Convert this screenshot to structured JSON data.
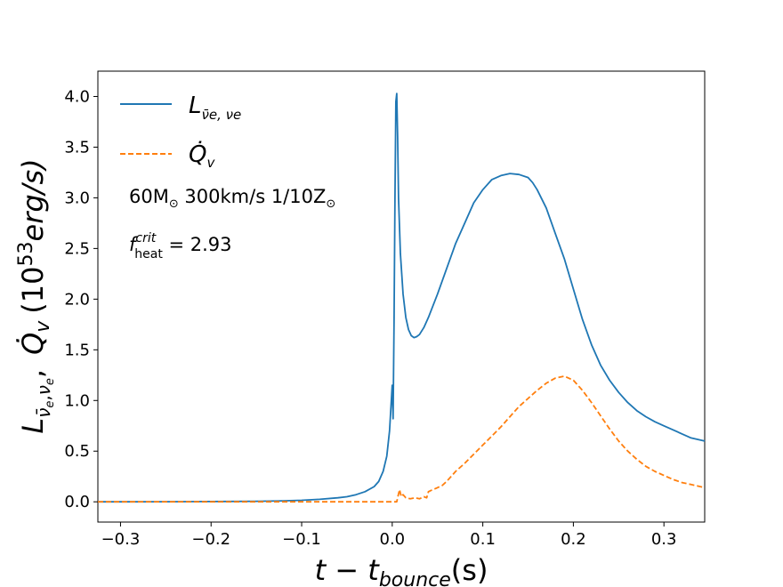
{
  "chart_data": {
    "type": "line",
    "xlabel": "t − t_bounce(s)",
    "xlabel_parts": {
      "main": "t − t",
      "sub": "bounce",
      "tail": "(s)"
    },
    "ylabel_parts": {
      "L": "L",
      "nubar": "ν̄",
      "e1": "e",
      "comma1": ",",
      "nu": "ν",
      "e2": "e",
      "comma2": ",",
      "Qdot": "Q̇",
      "v": "v",
      "units": "(10",
      "exp": "53",
      "units_tail": "erg/s)"
    },
    "xlim": [
      -0.325,
      0.345
    ],
    "ylim": [
      -0.2,
      4.25
    ],
    "xticks": [
      -0.3,
      -0.2,
      -0.1,
      0.0,
      0.1,
      0.2,
      0.3
    ],
    "xtick_labels": [
      "−0.3",
      "−0.2",
      "−0.1",
      "0.0",
      "0.1",
      "0.2",
      "0.3"
    ],
    "yticks": [
      0.0,
      0.5,
      1.0,
      1.5,
      2.0,
      2.5,
      3.0,
      3.5,
      4.0
    ],
    "ytick_labels": [
      "0.0",
      "0.5",
      "1.0",
      "1.5",
      "2.0",
      "2.5",
      "3.0",
      "3.5",
      "4.0"
    ],
    "legend": [
      {
        "name": "L",
        "sub": "ν̄e, νe",
        "color": "#1f77b4",
        "style": "solid"
      },
      {
        "name": "Q̇",
        "sub": "v",
        "color": "#ff7f0e",
        "style": "dashed"
      }
    ],
    "annotations": {
      "model": {
        "mass": "60M",
        "sun": "⊙",
        "rest": " 300km/s 1/10Z",
        "sun2": "⊙"
      },
      "fheat": {
        "f": "f",
        "sup": "crit",
        "sub": "heat",
        "value": " = 2.93"
      }
    },
    "series": [
      {
        "name": "L_nue",
        "color": "#1f77b4",
        "x": [
          -0.325,
          -0.3,
          -0.25,
          -0.2,
          -0.15,
          -0.12,
          -0.1,
          -0.08,
          -0.06,
          -0.05,
          -0.04,
          -0.03,
          -0.02,
          -0.015,
          -0.01,
          -0.006,
          -0.003,
          -0.001,
          0.0,
          0.001,
          0.002,
          0.003,
          0.004,
          0.005,
          0.006,
          0.007,
          0.009,
          0.012,
          0.015,
          0.018,
          0.021,
          0.024,
          0.027,
          0.03,
          0.035,
          0.04,
          0.05,
          0.06,
          0.07,
          0.08,
          0.09,
          0.1,
          0.11,
          0.12,
          0.13,
          0.14,
          0.15,
          0.155,
          0.16,
          0.17,
          0.18,
          0.19,
          0.2,
          0.21,
          0.22,
          0.23,
          0.24,
          0.25,
          0.26,
          0.27,
          0.28,
          0.29,
          0.3,
          0.31,
          0.32,
          0.33,
          0.345
        ],
        "y": [
          0.0,
          0.0,
          0.001,
          0.003,
          0.005,
          0.01,
          0.015,
          0.025,
          0.04,
          0.05,
          0.07,
          0.1,
          0.15,
          0.2,
          0.3,
          0.45,
          0.7,
          1.0,
          1.15,
          0.82,
          1.8,
          3.0,
          3.95,
          4.03,
          3.6,
          3.0,
          2.45,
          2.05,
          1.82,
          1.7,
          1.64,
          1.62,
          1.63,
          1.65,
          1.72,
          1.82,
          2.05,
          2.3,
          2.55,
          2.75,
          2.95,
          3.08,
          3.18,
          3.22,
          3.24,
          3.23,
          3.2,
          3.15,
          3.08,
          2.9,
          2.65,
          2.4,
          2.1,
          1.8,
          1.55,
          1.35,
          1.2,
          1.08,
          0.98,
          0.9,
          0.84,
          0.79,
          0.75,
          0.71,
          0.67,
          0.63,
          0.6
        ]
      },
      {
        "name": "Q_v",
        "color": "#ff7f0e",
        "x": [
          -0.325,
          -0.2,
          -0.1,
          -0.05,
          0.0,
          0.005,
          0.008,
          0.01,
          0.012,
          0.015,
          0.02,
          0.025,
          0.03,
          0.035,
          0.038,
          0.04,
          0.045,
          0.05,
          0.055,
          0.06,
          0.065,
          0.07,
          0.08,
          0.09,
          0.1,
          0.11,
          0.12,
          0.13,
          0.14,
          0.15,
          0.16,
          0.17,
          0.18,
          0.19,
          0.2,
          0.21,
          0.22,
          0.23,
          0.24,
          0.25,
          0.26,
          0.27,
          0.28,
          0.29,
          0.3,
          0.31,
          0.32,
          0.33,
          0.345
        ],
        "y": [
          0.0,
          0.0,
          0.0,
          0.0,
          0.0,
          0.0,
          0.12,
          0.05,
          0.07,
          0.04,
          0.03,
          0.04,
          0.03,
          0.05,
          0.04,
          0.1,
          0.12,
          0.14,
          0.16,
          0.2,
          0.25,
          0.3,
          0.38,
          0.47,
          0.56,
          0.65,
          0.74,
          0.84,
          0.94,
          1.02,
          1.1,
          1.17,
          1.22,
          1.24,
          1.2,
          1.1,
          0.98,
          0.85,
          0.72,
          0.6,
          0.5,
          0.42,
          0.35,
          0.3,
          0.26,
          0.22,
          0.19,
          0.17,
          0.14
        ]
      }
    ]
  }
}
